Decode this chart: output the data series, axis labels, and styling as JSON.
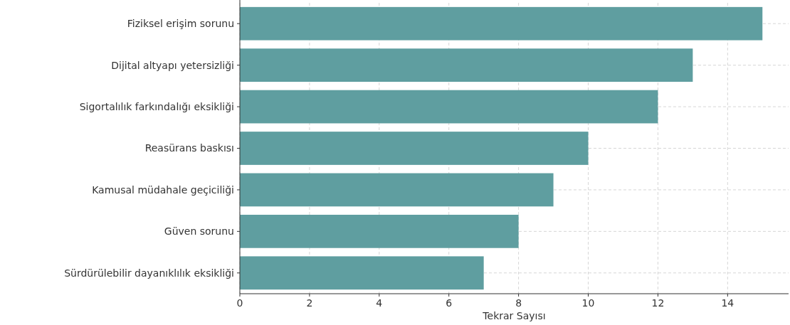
{
  "chart_data": {
    "type": "bar",
    "orientation": "horizontal",
    "xlabel": "Tekrar Sayısı",
    "categories": [
      "Fiziksel erişim sorunu",
      "Dijital altyapı yetersizliği",
      "Sigortalılık farkındalığı eksikliği",
      "Reasürans baskısı",
      "Kamusal müdahale geçiciliği",
      "Güven sorunu",
      "Sürdürülebilir dayanıklılık eksikliği"
    ],
    "values": [
      15,
      13,
      12,
      10,
      9,
      8,
      7
    ],
    "color": "#5f9ea0",
    "xlim": [
      0,
      15.75
    ],
    "xticks": [
      0,
      2,
      4,
      6,
      8,
      10,
      12,
      14
    ],
    "grid": true
  }
}
